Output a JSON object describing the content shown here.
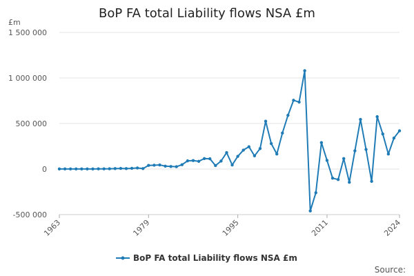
{
  "chart_data": {
    "type": "line",
    "title": "BoP FA total Liability flows NSA £m",
    "ylabel": "£m",
    "xlabel": "",
    "ylim": [
      -500000,
      1500000
    ],
    "y_ticks": [
      -500000,
      0,
      500000,
      1000000,
      1500000
    ],
    "y_tick_labels": [
      "-500 000",
      "0",
      "500 000",
      "1 000 000",
      "1 500 000"
    ],
    "x_ticks": [
      1963,
      1979,
      1995,
      2011,
      2024
    ],
    "x_tick_labels": [
      "1963",
      "1979",
      "1995",
      "2011",
      "2024"
    ],
    "xlim": [
      1963,
      2024
    ],
    "grid": "horizontal",
    "legend": "bottom-center",
    "series": [
      {
        "name": "BoP FA total Liability flows NSA £m",
        "color": "#1f7bb6",
        "x": [
          1963,
          1964,
          1965,
          1966,
          1967,
          1968,
          1969,
          1970,
          1971,
          1972,
          1973,
          1974,
          1975,
          1976,
          1977,
          1978,
          1979,
          1980,
          1981,
          1982,
          1983,
          1984,
          1985,
          1986,
          1987,
          1988,
          1989,
          1990,
          1991,
          1992,
          1993,
          1994,
          1995,
          1996,
          1997,
          1998,
          1999,
          2000,
          2001,
          2002,
          2003,
          2004,
          2005,
          2006,
          2007,
          2008,
          2009,
          2010,
          2011,
          2012,
          2013,
          2014,
          2015,
          2016,
          2017,
          2018,
          2019,
          2020,
          2021,
          2022,
          2023,
          2024
        ],
        "values": [
          1000,
          1000,
          1000,
          1000,
          1000,
          1000,
          1000,
          2000,
          2000,
          3000,
          5000,
          7000,
          5000,
          8000,
          12000,
          5000,
          40000,
          42000,
          45000,
          32000,
          28000,
          26000,
          48000,
          90000,
          93000,
          85000,
          115000,
          113000,
          38000,
          88000,
          180000,
          45000,
          140000,
          208000,
          245000,
          145000,
          225000,
          525000,
          280000,
          165000,
          395000,
          590000,
          755000,
          735000,
          1080000,
          -460000,
          -260000,
          290000,
          95000,
          -100000,
          -115000,
          115000,
          -145000,
          200000,
          545000,
          215000,
          -135000,
          575000,
          385000,
          165000,
          340000,
          420000
        ]
      }
    ]
  },
  "source_label": "Source:"
}
